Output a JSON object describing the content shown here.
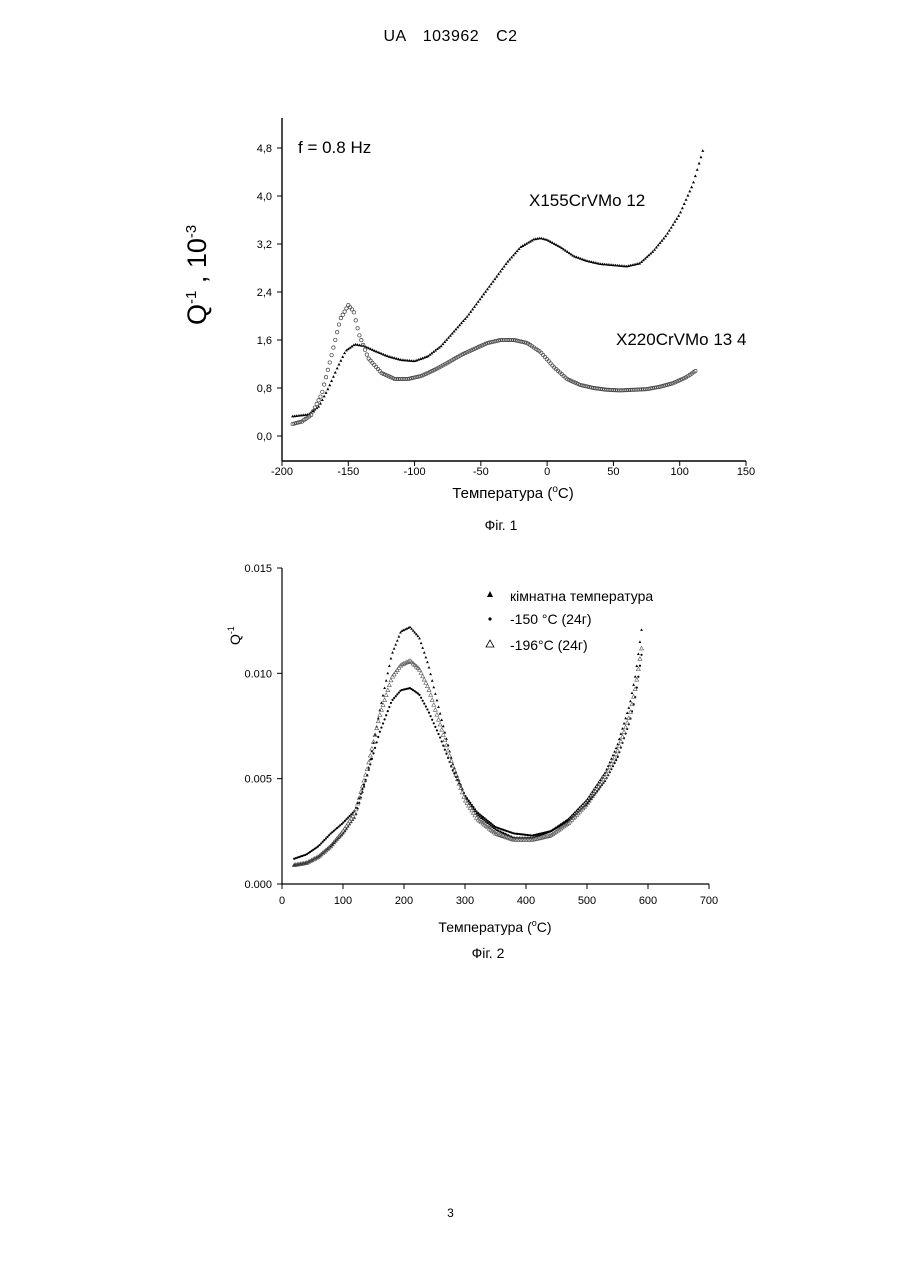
{
  "header": "UA   103962   C2",
  "page_number": "3",
  "chart_data": [
    {
      "type": "scatter",
      "caption": "Фіг. 1",
      "annotation": "f = 0.8 Hz",
      "xlabel_prefix": "Температура (",
      "xlabel_unit_sup": "o",
      "xlabel_suffix": "C)",
      "ylabel_base": "Q",
      "ylabel_sup": "-1",
      "ylabel_mid": " , 10",
      "ylabel_sup2": "-3",
      "xlim": [
        -200,
        150
      ],
      "ylim": [
        -0.4,
        5.0
      ],
      "xticks": [
        "-200",
        "-150",
        "-100",
        "-50",
        "0",
        "50",
        "100",
        "150"
      ],
      "xtick_values": [
        -200,
        -150,
        -100,
        -50,
        0,
        50,
        100,
        150
      ],
      "yticks": [
        "0,0",
        "0,8",
        "1,6",
        "2,4",
        "3,2",
        "4,0",
        "4,8"
      ],
      "ytick_values": [
        0,
        0.8,
        1.6,
        2.4,
        3.2,
        4.0,
        4.8
      ],
      "grid": false,
      "series": [
        {
          "name": "X155CrVMo 12",
          "marker": "filled-triangle",
          "x": [
            -192,
            -180,
            -172,
            -165,
            -158,
            -152,
            -145,
            -138,
            -130,
            -120,
            -110,
            -100,
            -90,
            -80,
            -70,
            -60,
            -50,
            -40,
            -30,
            -20,
            -10,
            -5,
            0,
            10,
            20,
            30,
            40,
            50,
            60,
            70,
            80,
            90,
            100,
            110,
            118
          ],
          "y": [
            0.33,
            0.36,
            0.5,
            0.8,
            1.15,
            1.42,
            1.53,
            1.5,
            1.42,
            1.33,
            1.27,
            1.25,
            1.33,
            1.5,
            1.75,
            2.0,
            2.3,
            2.6,
            2.9,
            3.15,
            3.28,
            3.3,
            3.27,
            3.15,
            3.0,
            2.92,
            2.87,
            2.85,
            2.83,
            2.88,
            3.08,
            3.35,
            3.7,
            4.2,
            4.8
          ]
        },
        {
          "name": "X220CrVMo 13 4",
          "marker": "open-circle",
          "x": [
            -192,
            -185,
            -178,
            -170,
            -162,
            -156,
            -150,
            -146,
            -142,
            -135,
            -125,
            -115,
            -105,
            -95,
            -85,
            -75,
            -65,
            -55,
            -45,
            -35,
            -25,
            -15,
            -5,
            5,
            15,
            25,
            35,
            45,
            55,
            65,
            75,
            85,
            95,
            105,
            113
          ],
          "y": [
            0.2,
            0.24,
            0.35,
            0.7,
            1.4,
            1.95,
            2.18,
            2.08,
            1.7,
            1.3,
            1.05,
            0.95,
            0.95,
            1.0,
            1.1,
            1.22,
            1.35,
            1.45,
            1.55,
            1.6,
            1.6,
            1.55,
            1.4,
            1.15,
            0.95,
            0.85,
            0.8,
            0.77,
            0.76,
            0.77,
            0.78,
            0.82,
            0.88,
            0.98,
            1.1
          ]
        }
      ]
    },
    {
      "type": "scatter",
      "caption": "Фіг. 2",
      "xlabel_prefix": "Температура (",
      "xlabel_unit_sup": "o",
      "xlabel_suffix": "C)",
      "ylabel_base": "Q",
      "ylabel_sup": "-1",
      "xlim": [
        0,
        700
      ],
      "ylim": [
        0,
        0.015
      ],
      "xticks": [
        "0",
        "100",
        "200",
        "300",
        "400",
        "500",
        "600",
        "700"
      ],
      "xtick_values": [
        0,
        100,
        200,
        300,
        400,
        500,
        600,
        700
      ],
      "yticks": [
        "0.000",
        "0.005",
        "0.010",
        "0.015"
      ],
      "ytick_values": [
        0,
        0.005,
        0.01,
        0.015
      ],
      "grid": false,
      "legend_position": "top-right",
      "series": [
        {
          "name": "кімнатна температура",
          "marker": "filled-triangle",
          "x": [
            20,
            40,
            60,
            80,
            100,
            120,
            140,
            160,
            180,
            195,
            210,
            225,
            240,
            260,
            280,
            300,
            320,
            350,
            380,
            410,
            440,
            470,
            500,
            530,
            550,
            570,
            580,
            590
          ],
          "y": [
            0.0009,
            0.001,
            0.0013,
            0.0018,
            0.0024,
            0.0032,
            0.0052,
            0.0082,
            0.0109,
            0.012,
            0.0122,
            0.0117,
            0.0104,
            0.008,
            0.0057,
            0.0042,
            0.0033,
            0.0026,
            0.0022,
            0.0022,
            0.0025,
            0.0031,
            0.004,
            0.0053,
            0.0066,
            0.0085,
            0.01,
            0.0122
          ]
        },
        {
          "name": "-150 °C (24г)",
          "marker": "small-dot",
          "x": [
            20,
            40,
            60,
            80,
            100,
            120,
            140,
            160,
            180,
            195,
            210,
            225,
            240,
            260,
            280,
            300,
            320,
            350,
            380,
            410,
            440,
            470,
            500,
            530,
            550,
            570,
            580,
            590
          ],
          "y": [
            0.0012,
            0.0014,
            0.0018,
            0.0024,
            0.0029,
            0.0035,
            0.0052,
            0.0072,
            0.0087,
            0.0092,
            0.0093,
            0.009,
            0.0082,
            0.0069,
            0.0054,
            0.0042,
            0.0034,
            0.0027,
            0.0024,
            0.0023,
            0.0025,
            0.003,
            0.0038,
            0.0049,
            0.006,
            0.0077,
            0.009,
            0.011
          ]
        },
        {
          "name": "-196°C (24г)",
          "marker": "open-triangle",
          "x": [
            20,
            40,
            60,
            80,
            100,
            120,
            140,
            160,
            180,
            195,
            210,
            225,
            240,
            260,
            280,
            300,
            320,
            350,
            380,
            410,
            440,
            470,
            500,
            530,
            550,
            570,
            580,
            590
          ],
          "y": [
            0.0009,
            0.001,
            0.0013,
            0.0018,
            0.0025,
            0.0034,
            0.0055,
            0.008,
            0.0098,
            0.0104,
            0.0106,
            0.0102,
            0.0093,
            0.0075,
            0.0056,
            0.004,
            0.0031,
            0.0024,
            0.0021,
            0.0021,
            0.0023,
            0.0029,
            0.0038,
            0.0051,
            0.0063,
            0.008,
            0.0094,
            0.0113
          ]
        }
      ]
    }
  ]
}
